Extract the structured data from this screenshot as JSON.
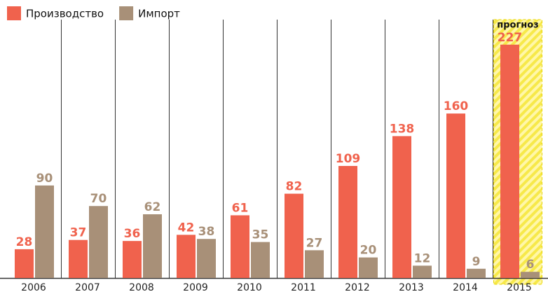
{
  "chart_data": {
    "type": "bar",
    "categories": [
      "2006",
      "2007",
      "2008",
      "2009",
      "2010",
      "2011",
      "2012",
      "2013",
      "2014",
      "2015"
    ],
    "series": [
      {
        "name": "Производство",
        "color": "#f0624d",
        "values": [
          28,
          37,
          36,
          42,
          61,
          82,
          109,
          138,
          160,
          227
        ]
      },
      {
        "name": "Импорт",
        "color": "#a89078",
        "values": [
          90,
          70,
          62,
          38,
          35,
          27,
          20,
          12,
          9,
          6
        ]
      }
    ],
    "annotations": [
      {
        "text": "прогноз",
        "category": "2015"
      }
    ]
  }
}
